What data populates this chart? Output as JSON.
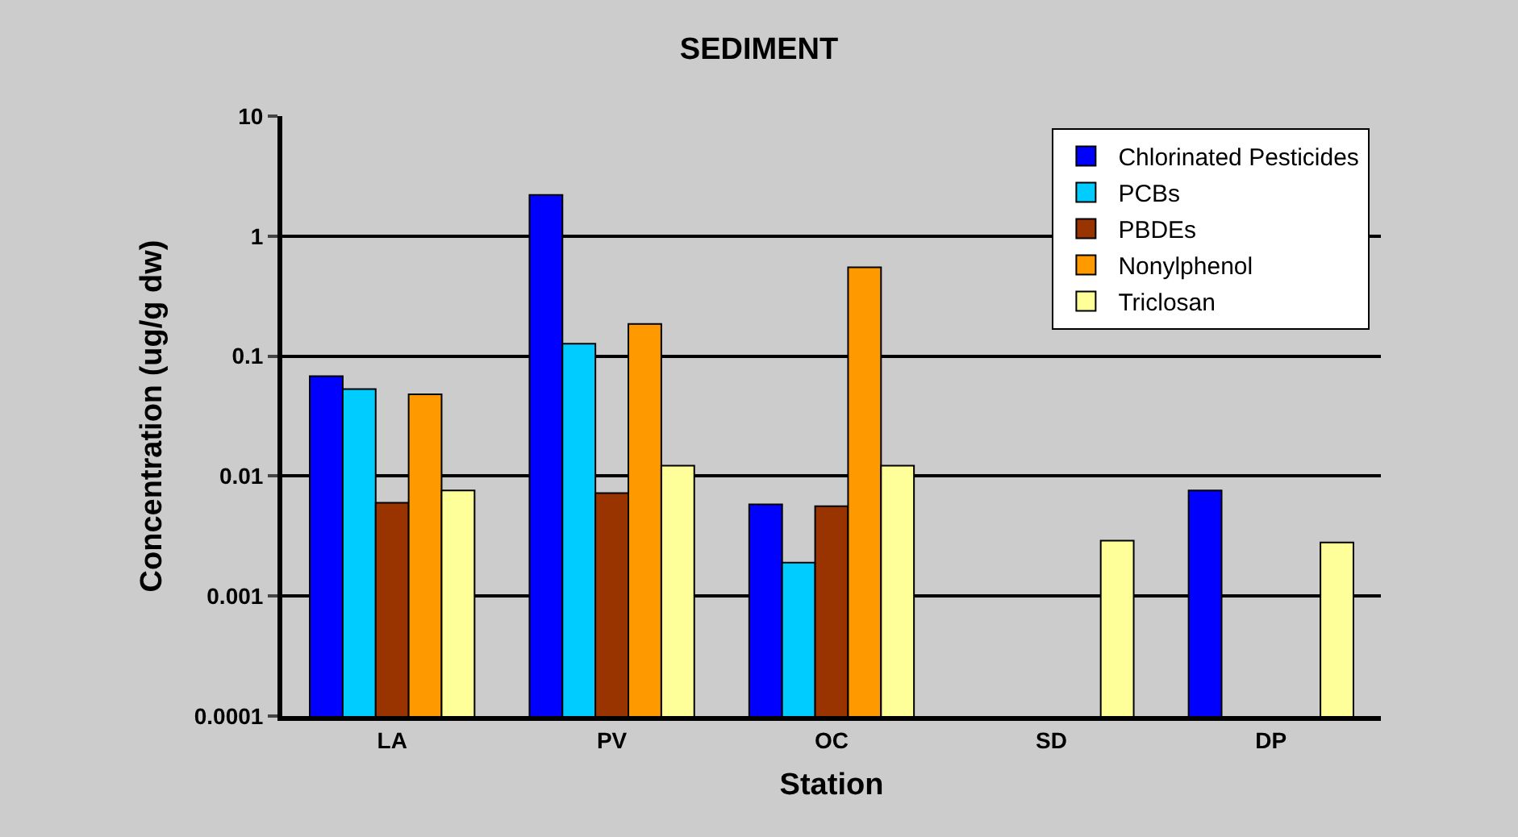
{
  "chart_data": {
    "type": "bar",
    "title": "SEDIMENT",
    "xlabel": "Station",
    "ylabel": "Concentration (ug/g dw)",
    "categories": [
      "LA",
      "PV",
      "OC",
      "SD",
      "DP"
    ],
    "series": [
      {
        "name": "Chlorinated Pesticides",
        "color": "#0000ff",
        "values": [
          0.068,
          2.2,
          0.0058,
          null,
          0.0076
        ]
      },
      {
        "name": "PCBs",
        "color": "#00ccff",
        "values": [
          0.053,
          0.127,
          0.0019,
          null,
          null
        ]
      },
      {
        "name": "PBDEs",
        "color": "#993300",
        "values": [
          0.006,
          0.0072,
          0.0056,
          null,
          null
        ]
      },
      {
        "name": "Nonylphenol",
        "color": "#ff9900",
        "values": [
          0.048,
          0.185,
          0.55,
          null,
          null
        ]
      },
      {
        "name": "Triclosan",
        "color": "#ffff99",
        "values": [
          0.0076,
          0.0122,
          0.0122,
          0.0029,
          0.0028
        ]
      }
    ],
    "log": true,
    "ylim": [
      0.0001,
      10
    ],
    "yticks": [
      0.0001,
      0.001,
      0.01,
      0.1,
      1,
      10
    ],
    "grid": "y",
    "legend": "top right"
  }
}
